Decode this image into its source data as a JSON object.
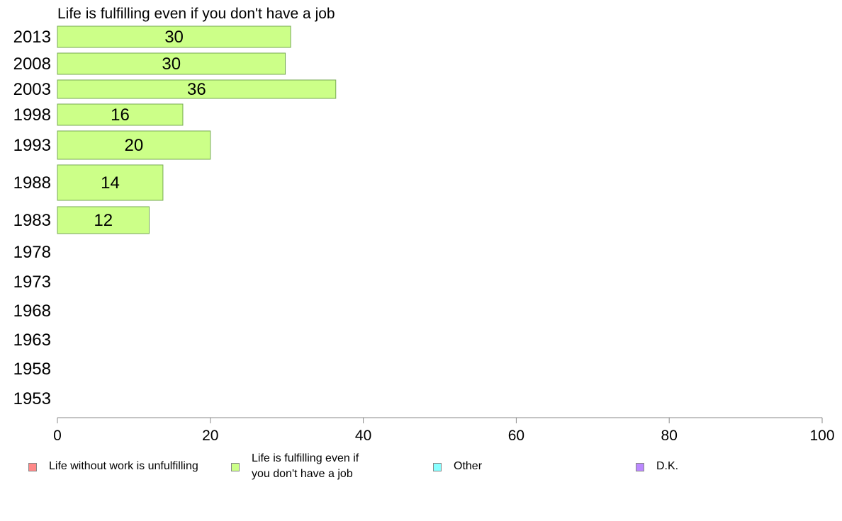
{
  "chart_data": {
    "type": "bar",
    "orientation": "horizontal",
    "title": "Life is fulfilling even if you don't have a job",
    "categories": [
      "2013",
      "2008",
      "2003",
      "1998",
      "1993",
      "1988",
      "1983",
      "1978",
      "1973",
      "1968",
      "1963",
      "1958",
      "1953"
    ],
    "series": [
      {
        "name": "Life is fulfilling even if you don't have a job",
        "color": "#ccff88",
        "values": [
          30.5,
          29.8,
          36.4,
          16.4,
          20.0,
          13.8,
          12.0,
          null,
          null,
          null,
          null,
          null,
          null
        ],
        "labels": [
          "30",
          "30",
          "36",
          "16",
          "20",
          "14",
          "12",
          "",
          "",
          "",
          "",
          "",
          ""
        ]
      }
    ],
    "xlim": [
      0,
      100
    ],
    "xticks": [
      "0",
      "20",
      "40",
      "60",
      "80",
      "100"
    ],
    "grid": false,
    "legend": {
      "placement": "bottom",
      "entries": [
        {
          "label": "Life without work is unfulfilling",
          "color": "#ff8888"
        },
        {
          "label": "Life is fulfilling even if\nyou don't have a job",
          "color": "#ccff88"
        },
        {
          "label": "Other",
          "color": "#88ffff"
        },
        {
          "label": "D.K.",
          "color": "#bb88ff"
        }
      ]
    }
  }
}
